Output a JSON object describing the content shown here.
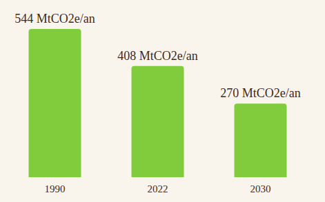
{
  "chart_data": {
    "type": "bar",
    "categories": [
      "1990",
      "2022",
      "2030"
    ],
    "values": [
      544,
      408,
      270
    ],
    "value_labels": [
      "544 MtCO2e/an",
      "408 MtCO2e/an",
      "270 MtCO2e/an"
    ],
    "color": "#80cc3c",
    "ylim": [
      0,
      544
    ],
    "data_labels": true,
    "tick_labels": "x",
    "grid": false
  }
}
